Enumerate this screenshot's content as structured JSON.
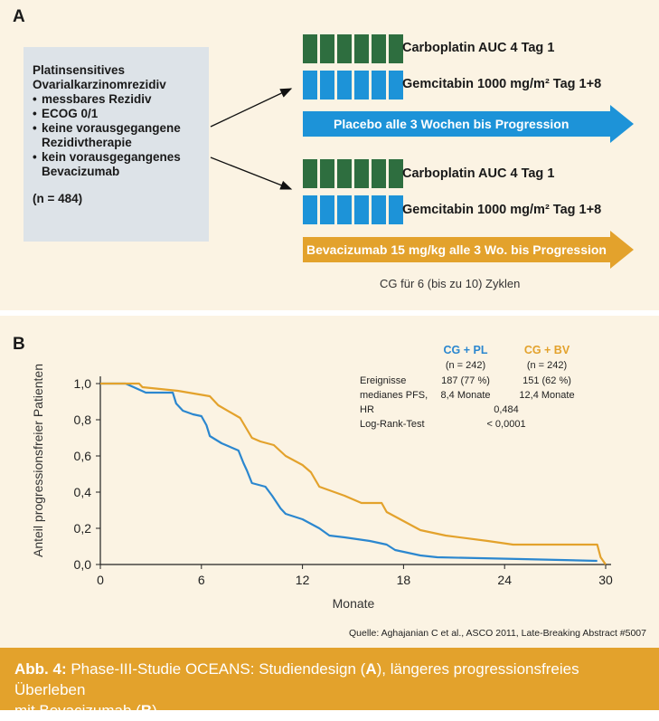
{
  "panel_a": {
    "letter": "A",
    "inclusion": {
      "title_line1": "Platinsensitives",
      "title_line2": "Ovarialkarzinomrezidiv",
      "criteria": [
        {
          "line1": "messbares Rezidiv",
          "line2": ""
        },
        {
          "line1": "ECOG 0/1",
          "line2": ""
        },
        {
          "line1": "keine vorausgegangene",
          "line2": "Rezidivtherapie"
        },
        {
          "line1": "kein vorausgegangenes",
          "line2": "Bevacizumab"
        }
      ],
      "n": "(n = 484)"
    },
    "arm1": {
      "carbo": "Carboplatin AUC 4 Tag 1",
      "gem": "Gemcitabin 1000 mg/m² Tag 1+8",
      "arrow": "Placebo alle 3 Wochen bis Progression"
    },
    "arm2": {
      "carbo": "Carboplatin AUC 4 Tag 1",
      "gem": "Gemcitabin 1000 mg/m² Tag 1+8",
      "arrow": "Bevacizumab 15 mg/kg alle 3 Wo. bis Progression"
    },
    "cycles_note": "CG für 6 (bis zu 10) Zyklen",
    "colors": {
      "green": "#2e6e3f",
      "blue": "#1d93d8",
      "orange": "#e3a22c",
      "box": "#dde3e8"
    }
  },
  "panel_b": {
    "letter": "B",
    "stats": {
      "col1_header": "CG + PL",
      "col2_header": "CG + BV",
      "col1_n": "(n = 242)",
      "col2_n": "(n = 242)",
      "rows": [
        {
          "label": "Ereignisse",
          "v1": "187 (77 %)",
          "v2": "151 (62 %)"
        },
        {
          "label": "medianes PFS,",
          "v1": "8,4 Monate",
          "v2": "12,4 Monate"
        },
        {
          "label": "HR",
          "v": "0,484"
        },
        {
          "label": "Log-Rank-Test",
          "v": "< 0,0001"
        }
      ]
    }
  },
  "chart_data": {
    "type": "line",
    "title": "",
    "xlabel": "Monate",
    "ylabel": "Anteil progressionsfreier Patienten",
    "xlim": [
      0,
      30
    ],
    "ylim": [
      0,
      1.0
    ],
    "x_ticks": [
      "0",
      "6",
      "12",
      "18",
      "24",
      "30"
    ],
    "y_ticks": [
      "0,0",
      "0,2",
      "0,4",
      "0,6",
      "0,8",
      "1,0"
    ],
    "series": [
      {
        "name": "CG + PL",
        "color": "#2b87cf",
        "x": [
          0,
          1.5,
          2.7,
          4.3,
          4.5,
          4.9,
          5.5,
          6.0,
          6.3,
          6.5,
          7.2,
          8.2,
          8.5,
          8.7,
          9.0,
          9.8,
          10.2,
          10.7,
          11.0,
          12.0,
          13.0,
          13.6,
          14.5,
          16.0,
          17.0,
          17.5,
          18.0,
          19.0,
          20.0,
          25.0,
          29.5
        ],
        "y": [
          1.0,
          1.0,
          0.95,
          0.95,
          0.89,
          0.85,
          0.83,
          0.82,
          0.77,
          0.71,
          0.67,
          0.63,
          0.56,
          0.52,
          0.45,
          0.43,
          0.38,
          0.31,
          0.28,
          0.25,
          0.2,
          0.16,
          0.15,
          0.13,
          0.11,
          0.08,
          0.07,
          0.05,
          0.04,
          0.03,
          0.02
        ]
      },
      {
        "name": "CG + BV",
        "color": "#e3a22c",
        "x": [
          0,
          2.3,
          2.5,
          4.6,
          6.5,
          7.0,
          8.3,
          9.0,
          9.5,
          10.3,
          11.0,
          12.0,
          12.5,
          13.0,
          14.5,
          15.5,
          16.7,
          17.0,
          18.0,
          19.0,
          20.5,
          23.0,
          24.5,
          29.5,
          29.7,
          30.0
        ],
        "y": [
          1.0,
          1.0,
          0.98,
          0.96,
          0.93,
          0.88,
          0.81,
          0.7,
          0.68,
          0.66,
          0.6,
          0.55,
          0.51,
          0.43,
          0.38,
          0.34,
          0.34,
          0.29,
          0.24,
          0.19,
          0.16,
          0.13,
          0.11,
          0.11,
          0.04,
          0.0
        ]
      }
    ]
  },
  "source": "Quelle: Aghajanian C et al., ASCO 2011, Late-Breaking Abstract #5007",
  "caption": {
    "prefix": "Abb. 4:",
    "text_part1": " Phase-III-Studie OCEANS: Studiendesign (",
    "a": "A",
    "text_part2": "), längeres progressionsfreies Überleben",
    "text_part3": "mit Bevacizumab (",
    "b": "B",
    "text_part4": ")"
  }
}
